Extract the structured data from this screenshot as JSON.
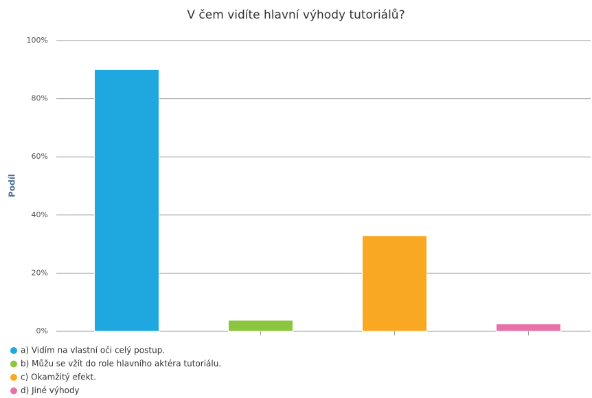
{
  "chart_data": {
    "type": "bar",
    "title": "V čem vidíte hlavní výhody tutoriálů?",
    "y_axis_label": "Podíl",
    "series": [
      {
        "name": "a) Vidím na vlastní oči celý postup.",
        "color": "#1fa8e0",
        "values": [
          90
        ]
      },
      {
        "name": "b) Můžu se vžít do role hlavního aktéra tutoriálu.",
        "color": "#8cc63f",
        "values": [
          3.8
        ]
      },
      {
        "name": "c) Okamžitý efekt.",
        "color": "#f8a823",
        "values": [
          32.9
        ]
      },
      {
        "name": "d) Jiné výhody",
        "color": "#e672a8",
        "values": [
          2.6
        ]
      }
    ],
    "ylim": [
      0,
      100
    ],
    "yticks": [
      {
        "value": 0,
        "label": "0%"
      },
      {
        "value": 20,
        "label": "20%"
      },
      {
        "value": 40,
        "label": "40%"
      },
      {
        "value": 60,
        "label": "60%"
      },
      {
        "value": 80,
        "label": "80%"
      },
      {
        "value": 100,
        "label": "100%"
      }
    ],
    "grid": true
  }
}
